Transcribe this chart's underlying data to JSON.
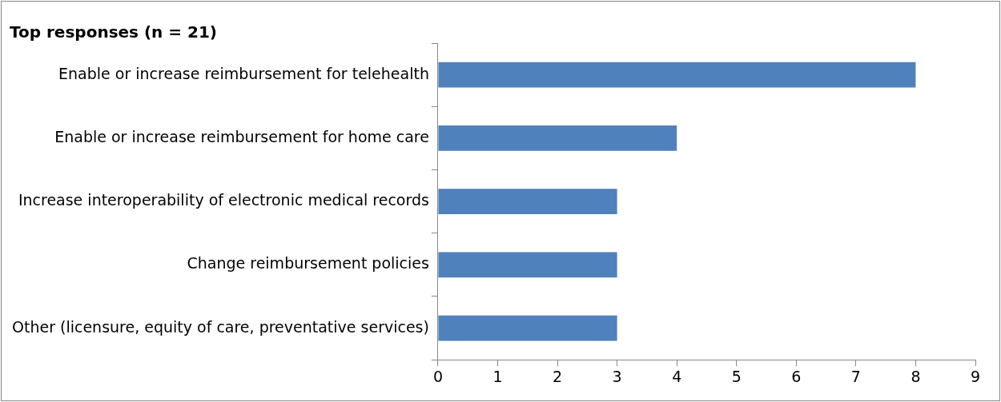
{
  "chart_data": {
    "type": "bar",
    "orientation": "horizontal",
    "title": "Top responses (n = 21)",
    "categories": [
      "Enable or increase reimbursement for telehealth",
      "Enable or increase reimbursement for home care",
      "Increase interoperability of electronic medical records",
      "Change reimbursement policies",
      "Other (licensure, equity of care, preventative services)"
    ],
    "values": [
      8,
      4,
      3,
      3,
      3
    ],
    "color": "#4f81bd",
    "xlim": [
      0,
      9
    ],
    "xticks": [
      0,
      1,
      2,
      3,
      4,
      5,
      6,
      7,
      8,
      9
    ],
    "grid": false,
    "legend": false
  }
}
